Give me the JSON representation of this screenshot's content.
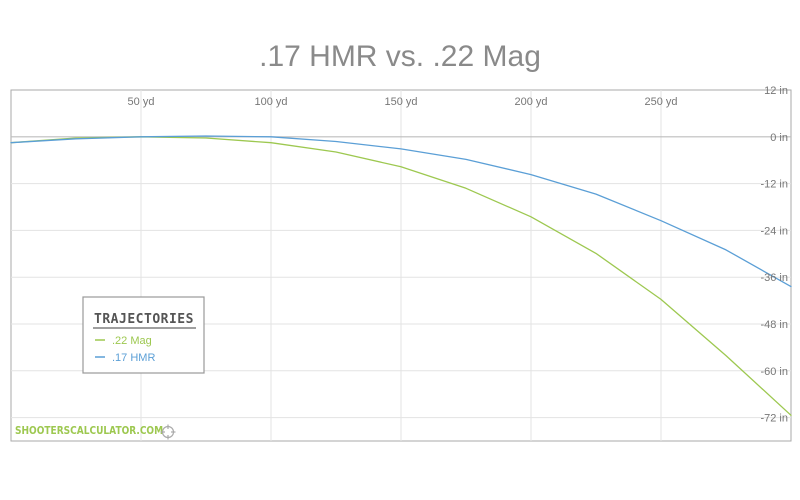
{
  "chart_data": {
    "type": "line",
    "title": ".17 HMR vs. .22 Mag",
    "xlabel": "",
    "ylabel": "",
    "xlim": [
      0,
      300
    ],
    "ylim": [
      -78,
      12
    ],
    "x_ticks": [
      50,
      100,
      150,
      200,
      250
    ],
    "x_tick_labels": [
      "50 yd",
      "100 yd",
      "150 yd",
      "200 yd",
      "250 yd"
    ],
    "y_ticks": [
      12,
      0,
      -12,
      -24,
      -36,
      -48,
      -60,
      -72
    ],
    "y_tick_labels": [
      "12 in",
      "0 in",
      "-12 in",
      "-24 in",
      "-36 in",
      "-48 in",
      "-60 in",
      "-72 in"
    ],
    "grid": true,
    "legend_title": "TRAJECTORIES",
    "legend_position": "lower-left",
    "series": [
      {
        "name": ".22 Mag",
        "color": "#9dc850",
        "x": [
          0,
          25,
          50,
          75,
          100,
          125,
          150,
          175,
          200,
          225,
          250,
          275,
          300
        ],
        "y": [
          -1.5,
          -0.3,
          0,
          -0.3,
          -1.5,
          -3.9,
          -7.7,
          -13.2,
          -20.5,
          -29.9,
          -41.7,
          -56.1,
          -71.4
        ]
      },
      {
        "name": ".17 HMR",
        "color": "#5b9fd6",
        "x": [
          0,
          25,
          50,
          75,
          100,
          125,
          150,
          175,
          200,
          225,
          250,
          275,
          300
        ],
        "y": [
          -1.5,
          -0.5,
          0,
          0.2,
          0,
          -1.2,
          -3.1,
          -5.8,
          -9.7,
          -14.7,
          -21.5,
          -29.0,
          -38.4
        ]
      }
    ]
  },
  "watermark": {
    "text": "SHOOTERSCALCULATOR.COM",
    "icon": "crosshair-icon",
    "color": "#9dc850"
  }
}
